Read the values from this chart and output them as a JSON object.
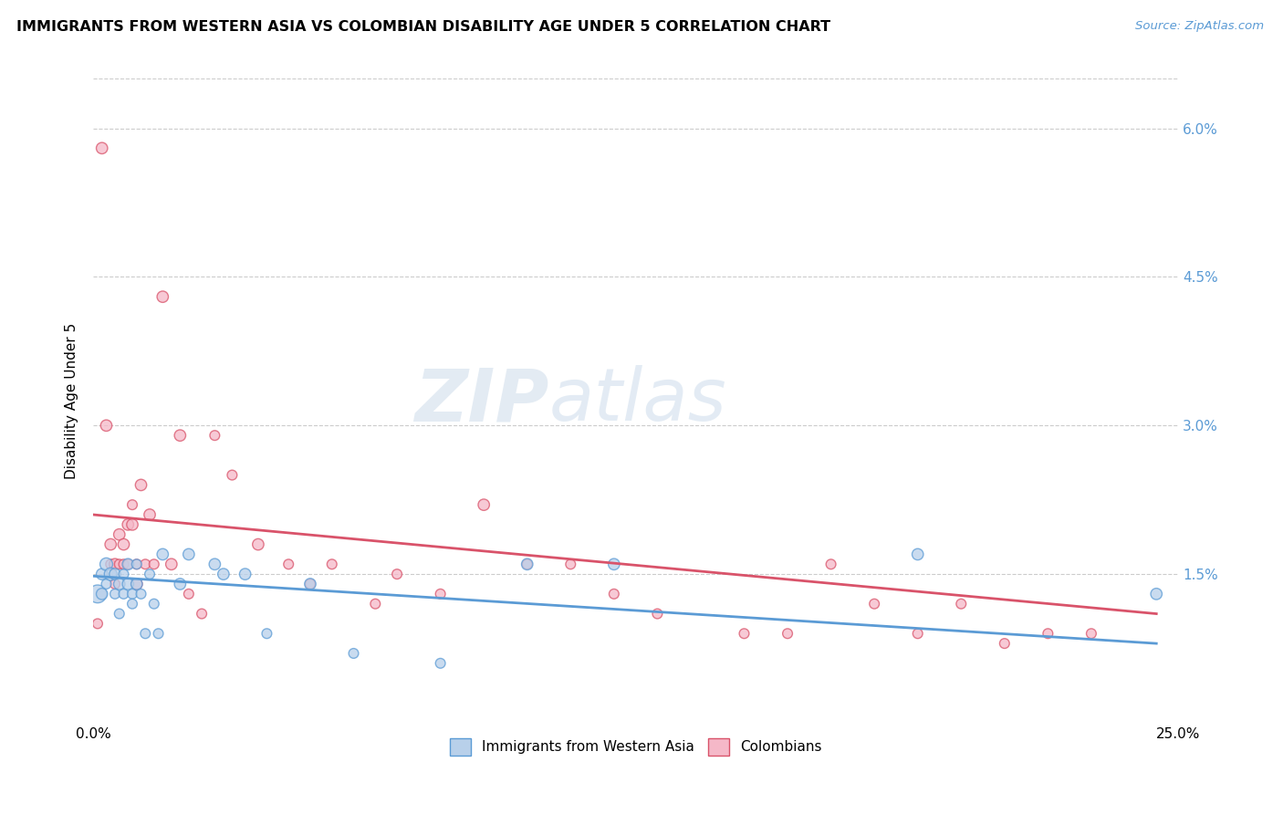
{
  "title": "IMMIGRANTS FROM WESTERN ASIA VS COLOMBIAN DISABILITY AGE UNDER 5 CORRELATION CHART",
  "source": "Source: ZipAtlas.com",
  "ylabel": "Disability Age Under 5",
  "xlabel": "",
  "xlim": [
    0.0,
    0.25
  ],
  "ylim": [
    -0.002,
    0.065
  ],
  "plot_ylim": [
    0.0,
    0.065
  ],
  "yticks": [
    0.0,
    0.015,
    0.03,
    0.045,
    0.06
  ],
  "ytick_labels": [
    "",
    "1.5%",
    "3.0%",
    "4.5%",
    "6.0%"
  ],
  "xticks": [
    0.0,
    0.05,
    0.1,
    0.15,
    0.2,
    0.25
  ],
  "xtick_labels": [
    "0.0%",
    "",
    "",
    "",
    "",
    "25.0%"
  ],
  "blue_color": "#b8d0ea",
  "pink_color": "#f5b8c8",
  "blue_line_color": "#5b9bd5",
  "pink_line_color": "#d9536a",
  "watermark_zip": "ZIP",
  "watermark_atlas": "atlas",
  "blue_scatter_x": [
    0.001,
    0.002,
    0.002,
    0.003,
    0.003,
    0.004,
    0.005,
    0.005,
    0.006,
    0.006,
    0.007,
    0.007,
    0.008,
    0.008,
    0.009,
    0.009,
    0.01,
    0.01,
    0.011,
    0.012,
    0.013,
    0.014,
    0.015,
    0.016,
    0.02,
    0.022,
    0.028,
    0.03,
    0.035,
    0.04,
    0.05,
    0.06,
    0.08,
    0.1,
    0.12,
    0.19,
    0.245
  ],
  "blue_scatter_y": [
    0.013,
    0.013,
    0.015,
    0.016,
    0.014,
    0.015,
    0.013,
    0.015,
    0.014,
    0.011,
    0.015,
    0.013,
    0.014,
    0.016,
    0.013,
    0.012,
    0.014,
    0.016,
    0.013,
    0.009,
    0.015,
    0.012,
    0.009,
    0.017,
    0.014,
    0.017,
    0.016,
    0.015,
    0.015,
    0.009,
    0.014,
    0.007,
    0.006,
    0.016,
    0.016,
    0.017,
    0.013
  ],
  "blue_scatter_sizes": [
    200,
    80,
    80,
    100,
    60,
    100,
    60,
    80,
    80,
    60,
    60,
    60,
    80,
    80,
    60,
    60,
    80,
    60,
    60,
    60,
    60,
    60,
    60,
    80,
    80,
    80,
    80,
    80,
    80,
    60,
    80,
    60,
    60,
    80,
    80,
    80,
    80
  ],
  "pink_scatter_x": [
    0.001,
    0.002,
    0.003,
    0.004,
    0.004,
    0.005,
    0.005,
    0.006,
    0.006,
    0.007,
    0.007,
    0.008,
    0.008,
    0.009,
    0.009,
    0.01,
    0.01,
    0.011,
    0.012,
    0.013,
    0.014,
    0.016,
    0.018,
    0.02,
    0.022,
    0.025,
    0.028,
    0.032,
    0.038,
    0.045,
    0.05,
    0.055,
    0.065,
    0.07,
    0.08,
    0.09,
    0.1,
    0.11,
    0.12,
    0.13,
    0.15,
    0.16,
    0.17,
    0.18,
    0.19,
    0.2,
    0.21,
    0.22,
    0.23
  ],
  "pink_scatter_y": [
    0.01,
    0.058,
    0.03,
    0.018,
    0.016,
    0.014,
    0.016,
    0.019,
    0.016,
    0.018,
    0.016,
    0.016,
    0.02,
    0.02,
    0.022,
    0.014,
    0.016,
    0.024,
    0.016,
    0.021,
    0.016,
    0.043,
    0.016,
    0.029,
    0.013,
    0.011,
    0.029,
    0.025,
    0.018,
    0.016,
    0.014,
    0.016,
    0.012,
    0.015,
    0.013,
    0.022,
    0.016,
    0.016,
    0.013,
    0.011,
    0.009,
    0.009,
    0.016,
    0.012,
    0.009,
    0.012,
    0.008,
    0.009,
    0.009
  ],
  "pink_scatter_sizes": [
    60,
    80,
    80,
    80,
    60,
    60,
    80,
    80,
    60,
    80,
    60,
    60,
    80,
    80,
    60,
    80,
    60,
    80,
    60,
    80,
    60,
    80,
    80,
    80,
    60,
    60,
    60,
    60,
    80,
    60,
    60,
    60,
    60,
    60,
    60,
    80,
    60,
    60,
    60,
    60,
    60,
    60,
    60,
    60,
    60,
    60,
    60,
    60,
    60
  ],
  "blue_trend_x0": 0.0,
  "blue_trend_x1": 0.245,
  "blue_trend_y0": 0.0148,
  "blue_trend_y1": 0.008,
  "pink_trend_x0": 0.0,
  "pink_trend_x1": 0.245,
  "pink_trend_y0": 0.021,
  "pink_trend_y1": 0.011
}
